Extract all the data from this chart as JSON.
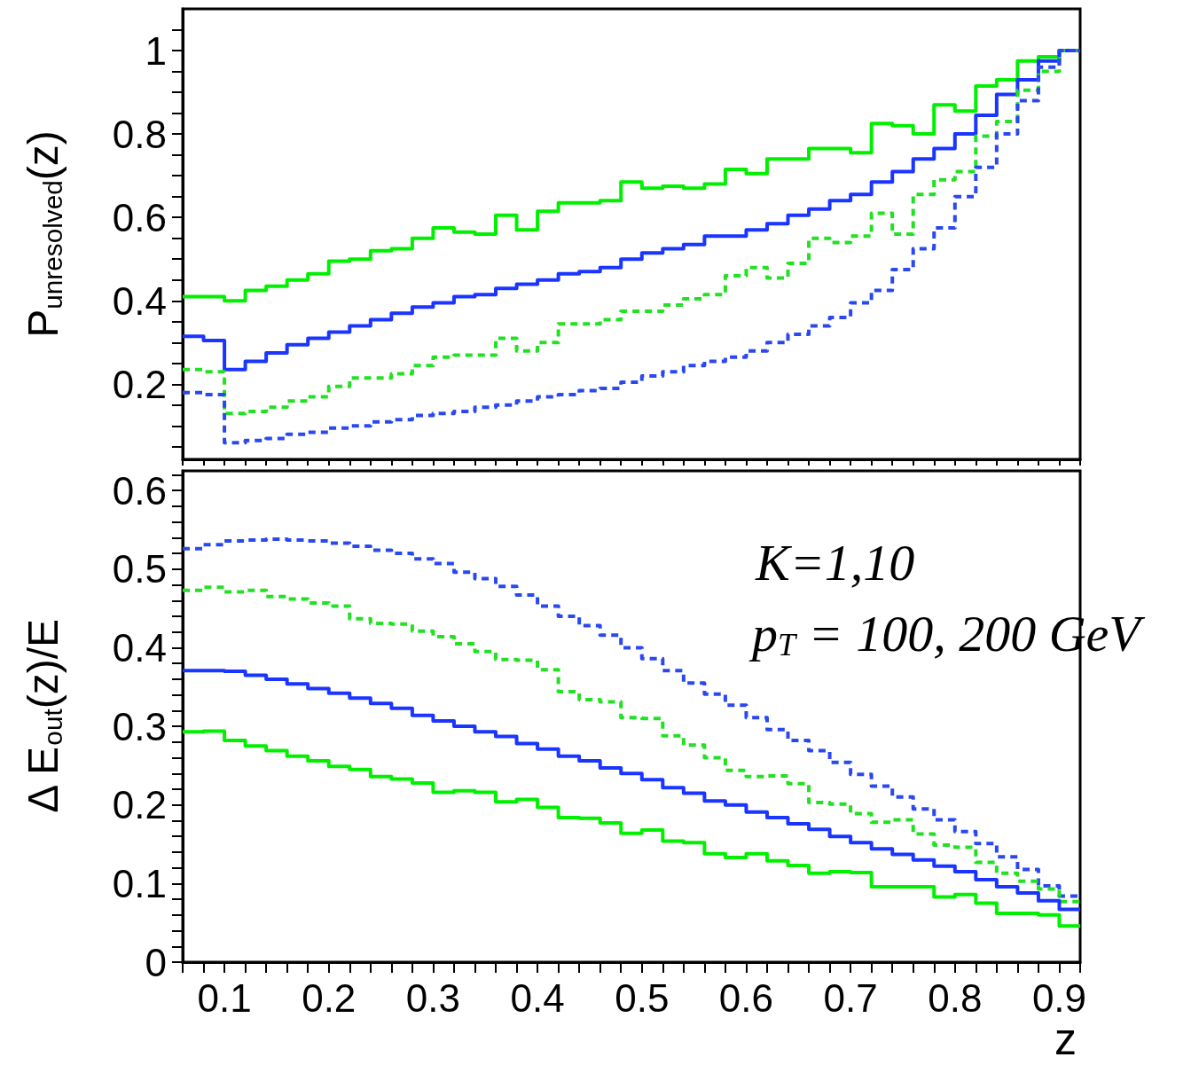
{
  "chart_data": [
    {
      "type": "histogram",
      "ylabel": "P$_{unresolved}$(z)",
      "tick_labels": "y",
      "xlim": [
        0.06,
        0.92
      ],
      "bins": [
        0.06,
        0.08,
        0.1,
        0.12,
        0.14,
        0.16,
        0.18,
        0.2,
        0.22,
        0.24,
        0.26,
        0.28,
        0.3,
        0.32,
        0.34,
        0.36,
        0.38,
        0.4,
        0.42,
        0.44,
        0.46,
        0.48,
        0.5,
        0.52,
        0.54,
        0.56,
        0.58,
        0.6,
        0.62,
        0.64,
        0.66,
        0.68,
        0.7,
        0.72,
        0.74,
        0.76,
        0.78,
        0.8,
        0.82,
        0.84,
        0.86,
        0.88,
        0.9,
        0.92
      ],
      "ylim": [
        0.02,
        1.1
      ],
      "yticks": [
        {
          "value": 0.05,
          "label": null
        },
        {
          "value": 0.1,
          "label": null
        },
        {
          "value": 0.15,
          "label": null
        },
        0.2,
        {
          "value": 0.25,
          "label": null
        },
        {
          "value": 0.3,
          "label": null
        },
        {
          "value": 0.35,
          "label": null
        },
        0.4,
        {
          "value": 0.45,
          "label": null
        },
        {
          "value": 0.5,
          "label": null
        },
        {
          "value": 0.55,
          "label": null
        },
        0.6,
        {
          "value": 0.65,
          "label": null
        },
        {
          "value": 0.7,
          "label": null
        },
        {
          "value": 0.75,
          "label": null
        },
        0.8,
        {
          "value": 0.85,
          "label": null
        },
        {
          "value": 0.9,
          "label": null
        },
        {
          "value": 0.95,
          "label": null
        },
        1,
        {
          "value": 1.05,
          "label": null
        }
      ],
      "xticks": [
        {
          "value": 0.06,
          "label": null
        },
        {
          "value": 0.08,
          "label": null
        },
        0.1,
        {
          "value": 0.12,
          "label": null
        },
        {
          "value": 0.14,
          "label": null
        },
        {
          "value": 0.16,
          "label": null
        },
        {
          "value": 0.18,
          "label": null
        },
        0.2,
        {
          "value": 0.22,
          "label": null
        },
        {
          "value": 0.24,
          "label": null
        },
        {
          "value": 0.26,
          "label": null
        },
        {
          "value": 0.28,
          "label": null
        },
        0.3,
        {
          "value": 0.32,
          "label": null
        },
        {
          "value": 0.34,
          "label": null
        },
        {
          "value": 0.36,
          "label": null
        },
        {
          "value": 0.38,
          "label": null
        },
        0.4,
        {
          "value": 0.42,
          "label": null
        },
        {
          "value": 0.44,
          "label": null
        },
        {
          "value": 0.46,
          "label": null
        },
        {
          "value": 0.48,
          "label": null
        },
        0.5,
        {
          "value": 0.52,
          "label": null
        },
        {
          "value": 0.54,
          "label": null
        },
        {
          "value": 0.56,
          "label": null
        },
        {
          "value": 0.58,
          "label": null
        },
        0.6,
        {
          "value": 0.62,
          "label": null
        },
        {
          "value": 0.64,
          "label": null
        },
        {
          "value": 0.66,
          "label": null
        },
        {
          "value": 0.68,
          "label": null
        },
        0.7,
        {
          "value": 0.72,
          "label": null
        },
        {
          "value": 0.74,
          "label": null
        },
        {
          "value": 0.76,
          "label": null
        },
        {
          "value": 0.78,
          "label": null
        },
        0.8,
        {
          "value": 0.82,
          "label": null
        },
        {
          "value": 0.84,
          "label": null
        },
        {
          "value": 0.86,
          "label": null
        },
        {
          "value": 0.88,
          "label": null
        },
        0.9,
        {
          "value": 0.92,
          "label": null
        }
      ],
      "series": [
        {
          "color": "#00f000",
          "line_style": "solid",
          "values": [
            0.41,
            0.41,
            0.4,
            0.425,
            0.435,
            0.45,
            0.465,
            0.495,
            0.5,
            0.52,
            0.525,
            0.55,
            0.575,
            0.565,
            0.56,
            0.605,
            0.57,
            0.615,
            0.635,
            0.635,
            0.64,
            0.685,
            0.67,
            0.675,
            0.67,
            0.68,
            0.715,
            0.705,
            0.74,
            0.74,
            0.765,
            0.765,
            0.755,
            0.825,
            0.82,
            0.8,
            0.87,
            0.855,
            0.915,
            0.93,
            0.975,
            0.985,
            1.0
          ]
        },
        {
          "color": "#1a35ff",
          "line_style": "solid",
          "values": [
            0.315,
            0.305,
            0.235,
            0.255,
            0.275,
            0.295,
            0.31,
            0.325,
            0.34,
            0.355,
            0.37,
            0.385,
            0.395,
            0.41,
            0.415,
            0.43,
            0.44,
            0.45,
            0.465,
            0.47,
            0.48,
            0.5,
            0.515,
            0.525,
            0.535,
            0.555,
            0.555,
            0.57,
            0.585,
            0.605,
            0.62,
            0.64,
            0.655,
            0.685,
            0.71,
            0.74,
            0.765,
            0.8,
            0.845,
            0.895,
            0.93,
            0.975,
            1.0
          ]
        },
        {
          "color": "#22e022",
          "line_style": "dotted",
          "values": [
            0.235,
            0.23,
            0.13,
            0.135,
            0.145,
            0.16,
            0.17,
            0.195,
            0.215,
            0.215,
            0.225,
            0.245,
            0.265,
            0.27,
            0.27,
            0.31,
            0.28,
            0.3,
            0.345,
            0.345,
            0.355,
            0.375,
            0.375,
            0.39,
            0.405,
            0.415,
            0.46,
            0.48,
            0.455,
            0.49,
            0.55,
            0.54,
            0.555,
            0.61,
            0.56,
            0.655,
            0.69,
            0.71,
            0.795,
            0.83,
            0.905,
            0.95,
            1.0
          ]
        },
        {
          "color": "#2a48f0",
          "line_style": "dotted",
          "values": [
            0.18,
            0.175,
            0.06,
            0.065,
            0.07,
            0.08,
            0.085,
            0.095,
            0.1,
            0.11,
            0.115,
            0.125,
            0.13,
            0.135,
            0.145,
            0.15,
            0.16,
            0.17,
            0.175,
            0.185,
            0.19,
            0.205,
            0.22,
            0.23,
            0.245,
            0.255,
            0.265,
            0.28,
            0.3,
            0.32,
            0.34,
            0.36,
            0.395,
            0.425,
            0.475,
            0.525,
            0.575,
            0.65,
            0.72,
            0.8,
            0.88,
            0.96,
            1.0
          ]
        }
      ]
    },
    {
      "type": "histogram",
      "ylabel": "Δ E$_{out}$(z)/E",
      "xlabel": "z",
      "xlim": [
        0.06,
        0.92
      ],
      "annotations": [
        "K=1,10",
        "p$_{T}$ = 100, 200 GeV"
      ],
      "bins": [
        0.06,
        0.08,
        0.1,
        0.12,
        0.14,
        0.16,
        0.18,
        0.2,
        0.22,
        0.24,
        0.26,
        0.28,
        0.3,
        0.32,
        0.34,
        0.36,
        0.38,
        0.4,
        0.42,
        0.44,
        0.46,
        0.48,
        0.5,
        0.52,
        0.54,
        0.56,
        0.58,
        0.6,
        0.62,
        0.64,
        0.66,
        0.68,
        0.7,
        0.72,
        0.74,
        0.76,
        0.78,
        0.8,
        0.82,
        0.84,
        0.86,
        0.88,
        0.9,
        0.92
      ],
      "ylim": [
        0,
        0.625
      ],
      "yticks": [
        0,
        {
          "value": 0.02,
          "label": null
        },
        {
          "value": 0.04,
          "label": null
        },
        {
          "value": 0.06,
          "label": null
        },
        {
          "value": 0.08,
          "label": null
        },
        0.1,
        {
          "value": 0.12,
          "label": null
        },
        {
          "value": 0.14,
          "label": null
        },
        {
          "value": 0.16,
          "label": null
        },
        {
          "value": 0.18,
          "label": null
        },
        0.2,
        {
          "value": 0.22,
          "label": null
        },
        {
          "value": 0.24,
          "label": null
        },
        {
          "value": 0.26,
          "label": null
        },
        {
          "value": 0.28,
          "label": null
        },
        0.3,
        {
          "value": 0.32,
          "label": null
        },
        {
          "value": 0.34,
          "label": null
        },
        {
          "value": 0.36,
          "label": null
        },
        {
          "value": 0.38,
          "label": null
        },
        0.4,
        {
          "value": 0.42,
          "label": null
        },
        {
          "value": 0.44,
          "label": null
        },
        {
          "value": 0.46,
          "label": null
        },
        {
          "value": 0.48,
          "label": null
        },
        0.5,
        {
          "value": 0.52,
          "label": null
        },
        {
          "value": 0.54,
          "label": null
        },
        {
          "value": 0.56,
          "label": null
        },
        {
          "value": 0.58,
          "label": null
        },
        0.6,
        {
          "value": 0.62,
          "label": null
        }
      ],
      "xticks": [
        {
          "value": 0.06,
          "label": null
        },
        {
          "value": 0.08,
          "label": null
        },
        0.1,
        {
          "value": 0.12,
          "label": null
        },
        {
          "value": 0.14,
          "label": null
        },
        {
          "value": 0.16,
          "label": null
        },
        {
          "value": 0.18,
          "label": null
        },
        0.2,
        {
          "value": 0.22,
          "label": null
        },
        {
          "value": 0.24,
          "label": null
        },
        {
          "value": 0.26,
          "label": null
        },
        {
          "value": 0.28,
          "label": null
        },
        0.3,
        {
          "value": 0.32,
          "label": null
        },
        {
          "value": 0.34,
          "label": null
        },
        {
          "value": 0.36,
          "label": null
        },
        {
          "value": 0.38,
          "label": null
        },
        0.4,
        {
          "value": 0.42,
          "label": null
        },
        {
          "value": 0.44,
          "label": null
        },
        {
          "value": 0.46,
          "label": null
        },
        {
          "value": 0.48,
          "label": null
        },
        0.5,
        {
          "value": 0.52,
          "label": null
        },
        {
          "value": 0.54,
          "label": null
        },
        {
          "value": 0.56,
          "label": null
        },
        {
          "value": 0.58,
          "label": null
        },
        0.6,
        {
          "value": 0.62,
          "label": null
        },
        {
          "value": 0.64,
          "label": null
        },
        {
          "value": 0.66,
          "label": null
        },
        {
          "value": 0.68,
          "label": null
        },
        0.7,
        {
          "value": 0.72,
          "label": null
        },
        {
          "value": 0.74,
          "label": null
        },
        {
          "value": 0.76,
          "label": null
        },
        {
          "value": 0.78,
          "label": null
        },
        0.8,
        {
          "value": 0.82,
          "label": null
        },
        {
          "value": 0.84,
          "label": null
        },
        {
          "value": 0.86,
          "label": null
        },
        {
          "value": 0.88,
          "label": null
        },
        0.9,
        {
          "value": 0.92,
          "label": null
        }
      ],
      "series": [
        {
          "color": "#2a48f0",
          "line_style": "dotted",
          "values": [
            0.526,
            0.531,
            0.536,
            0.537,
            0.538,
            0.537,
            0.536,
            0.533,
            0.529,
            0.524,
            0.52,
            0.513,
            0.507,
            0.496,
            0.488,
            0.478,
            0.467,
            0.453,
            0.44,
            0.428,
            0.416,
            0.4,
            0.386,
            0.371,
            0.355,
            0.341,
            0.327,
            0.311,
            0.296,
            0.282,
            0.269,
            0.254,
            0.239,
            0.224,
            0.21,
            0.195,
            0.181,
            0.166,
            0.151,
            0.134,
            0.118,
            0.097,
            0.084
          ]
        },
        {
          "color": "#22e022",
          "line_style": "dotted",
          "values": [
            0.473,
            0.477,
            0.471,
            0.473,
            0.465,
            0.462,
            0.457,
            0.453,
            0.437,
            0.431,
            0.43,
            0.421,
            0.414,
            0.405,
            0.395,
            0.385,
            0.384,
            0.372,
            0.344,
            0.334,
            0.331,
            0.311,
            0.31,
            0.288,
            0.276,
            0.26,
            0.244,
            0.236,
            0.237,
            0.227,
            0.203,
            0.201,
            0.189,
            0.178,
            0.181,
            0.163,
            0.149,
            0.146,
            0.127,
            0.113,
            0.103,
            0.093,
            0.077
          ]
        },
        {
          "color": "#1a35ff",
          "line_style": "solid",
          "values": [
            0.371,
            0.371,
            0.37,
            0.365,
            0.36,
            0.354,
            0.348,
            0.342,
            0.336,
            0.329,
            0.323,
            0.314,
            0.307,
            0.3,
            0.293,
            0.287,
            0.278,
            0.271,
            0.262,
            0.256,
            0.247,
            0.24,
            0.232,
            0.222,
            0.215,
            0.205,
            0.2,
            0.191,
            0.184,
            0.176,
            0.169,
            0.16,
            0.152,
            0.144,
            0.137,
            0.13,
            0.122,
            0.115,
            0.105,
            0.096,
            0.088,
            0.078,
            0.067
          ]
        },
        {
          "color": "#00f000",
          "line_style": "solid",
          "values": [
            0.293,
            0.294,
            0.282,
            0.275,
            0.269,
            0.262,
            0.256,
            0.249,
            0.245,
            0.236,
            0.233,
            0.228,
            0.216,
            0.218,
            0.216,
            0.204,
            0.207,
            0.197,
            0.184,
            0.183,
            0.177,
            0.164,
            0.168,
            0.154,
            0.152,
            0.138,
            0.133,
            0.138,
            0.129,
            0.123,
            0.113,
            0.115,
            0.114,
            0.096,
            0.096,
            0.096,
            0.083,
            0.086,
            0.075,
            0.062,
            0.062,
            0.06,
            0.046
          ]
        }
      ]
    }
  ]
}
